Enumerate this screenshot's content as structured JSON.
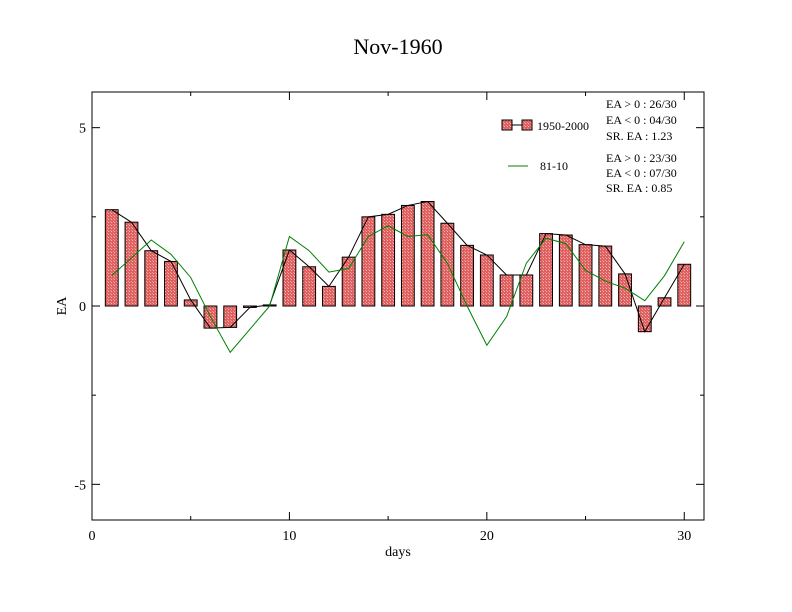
{
  "chart_data": {
    "type": "bar",
    "title": "Nov-1960",
    "xlabel": "days",
    "ylabel": "EA",
    "xlim": [
      0,
      31
    ],
    "ylim": [
      -6,
      6
    ],
    "xticks": [
      0,
      10,
      20,
      30
    ],
    "yticks": [
      -5,
      0,
      5
    ],
    "grid": false,
    "legend_position": "top-right",
    "x": [
      1,
      2,
      3,
      4,
      5,
      6,
      7,
      8,
      9,
      10,
      11,
      12,
      13,
      14,
      15,
      16,
      17,
      18,
      19,
      20,
      21,
      22,
      23,
      24,
      25,
      26,
      27,
      28,
      29,
      30
    ],
    "series": [
      {
        "name": "1950-2000",
        "kind": "bar+line",
        "color": "#e06060",
        "values": [
          2.7,
          2.35,
          1.55,
          1.25,
          0.17,
          -0.62,
          -0.6,
          -0.04,
          0.03,
          1.57,
          1.1,
          0.55,
          1.37,
          2.5,
          2.57,
          2.82,
          2.93,
          2.32,
          1.7,
          1.43,
          0.87,
          0.87,
          2.03,
          1.99,
          1.72,
          1.68,
          0.9,
          -0.72,
          0.23,
          1.17
        ]
      },
      {
        "name": "81-10",
        "kind": "line",
        "color": "#008000",
        "values": [
          0.85,
          1.35,
          1.85,
          1.45,
          0.8,
          -0.3,
          -1.3,
          -0.65,
          0.0,
          1.95,
          1.55,
          0.95,
          1.05,
          1.95,
          2.25,
          1.95,
          2.0,
          1.2,
          0.0,
          -1.1,
          -0.3,
          1.2,
          1.9,
          1.75,
          1.0,
          0.7,
          0.5,
          0.15,
          0.85,
          1.8
        ]
      }
    ],
    "annotations": {
      "group1": [
        "EA > 0 : 26/30",
        "EA < 0 : 04/30",
        "SR. EA :  1.23"
      ],
      "group2": [
        "EA > 0 : 23/30",
        "EA < 0 : 07/30",
        "SR. EA :  0.85"
      ]
    }
  }
}
